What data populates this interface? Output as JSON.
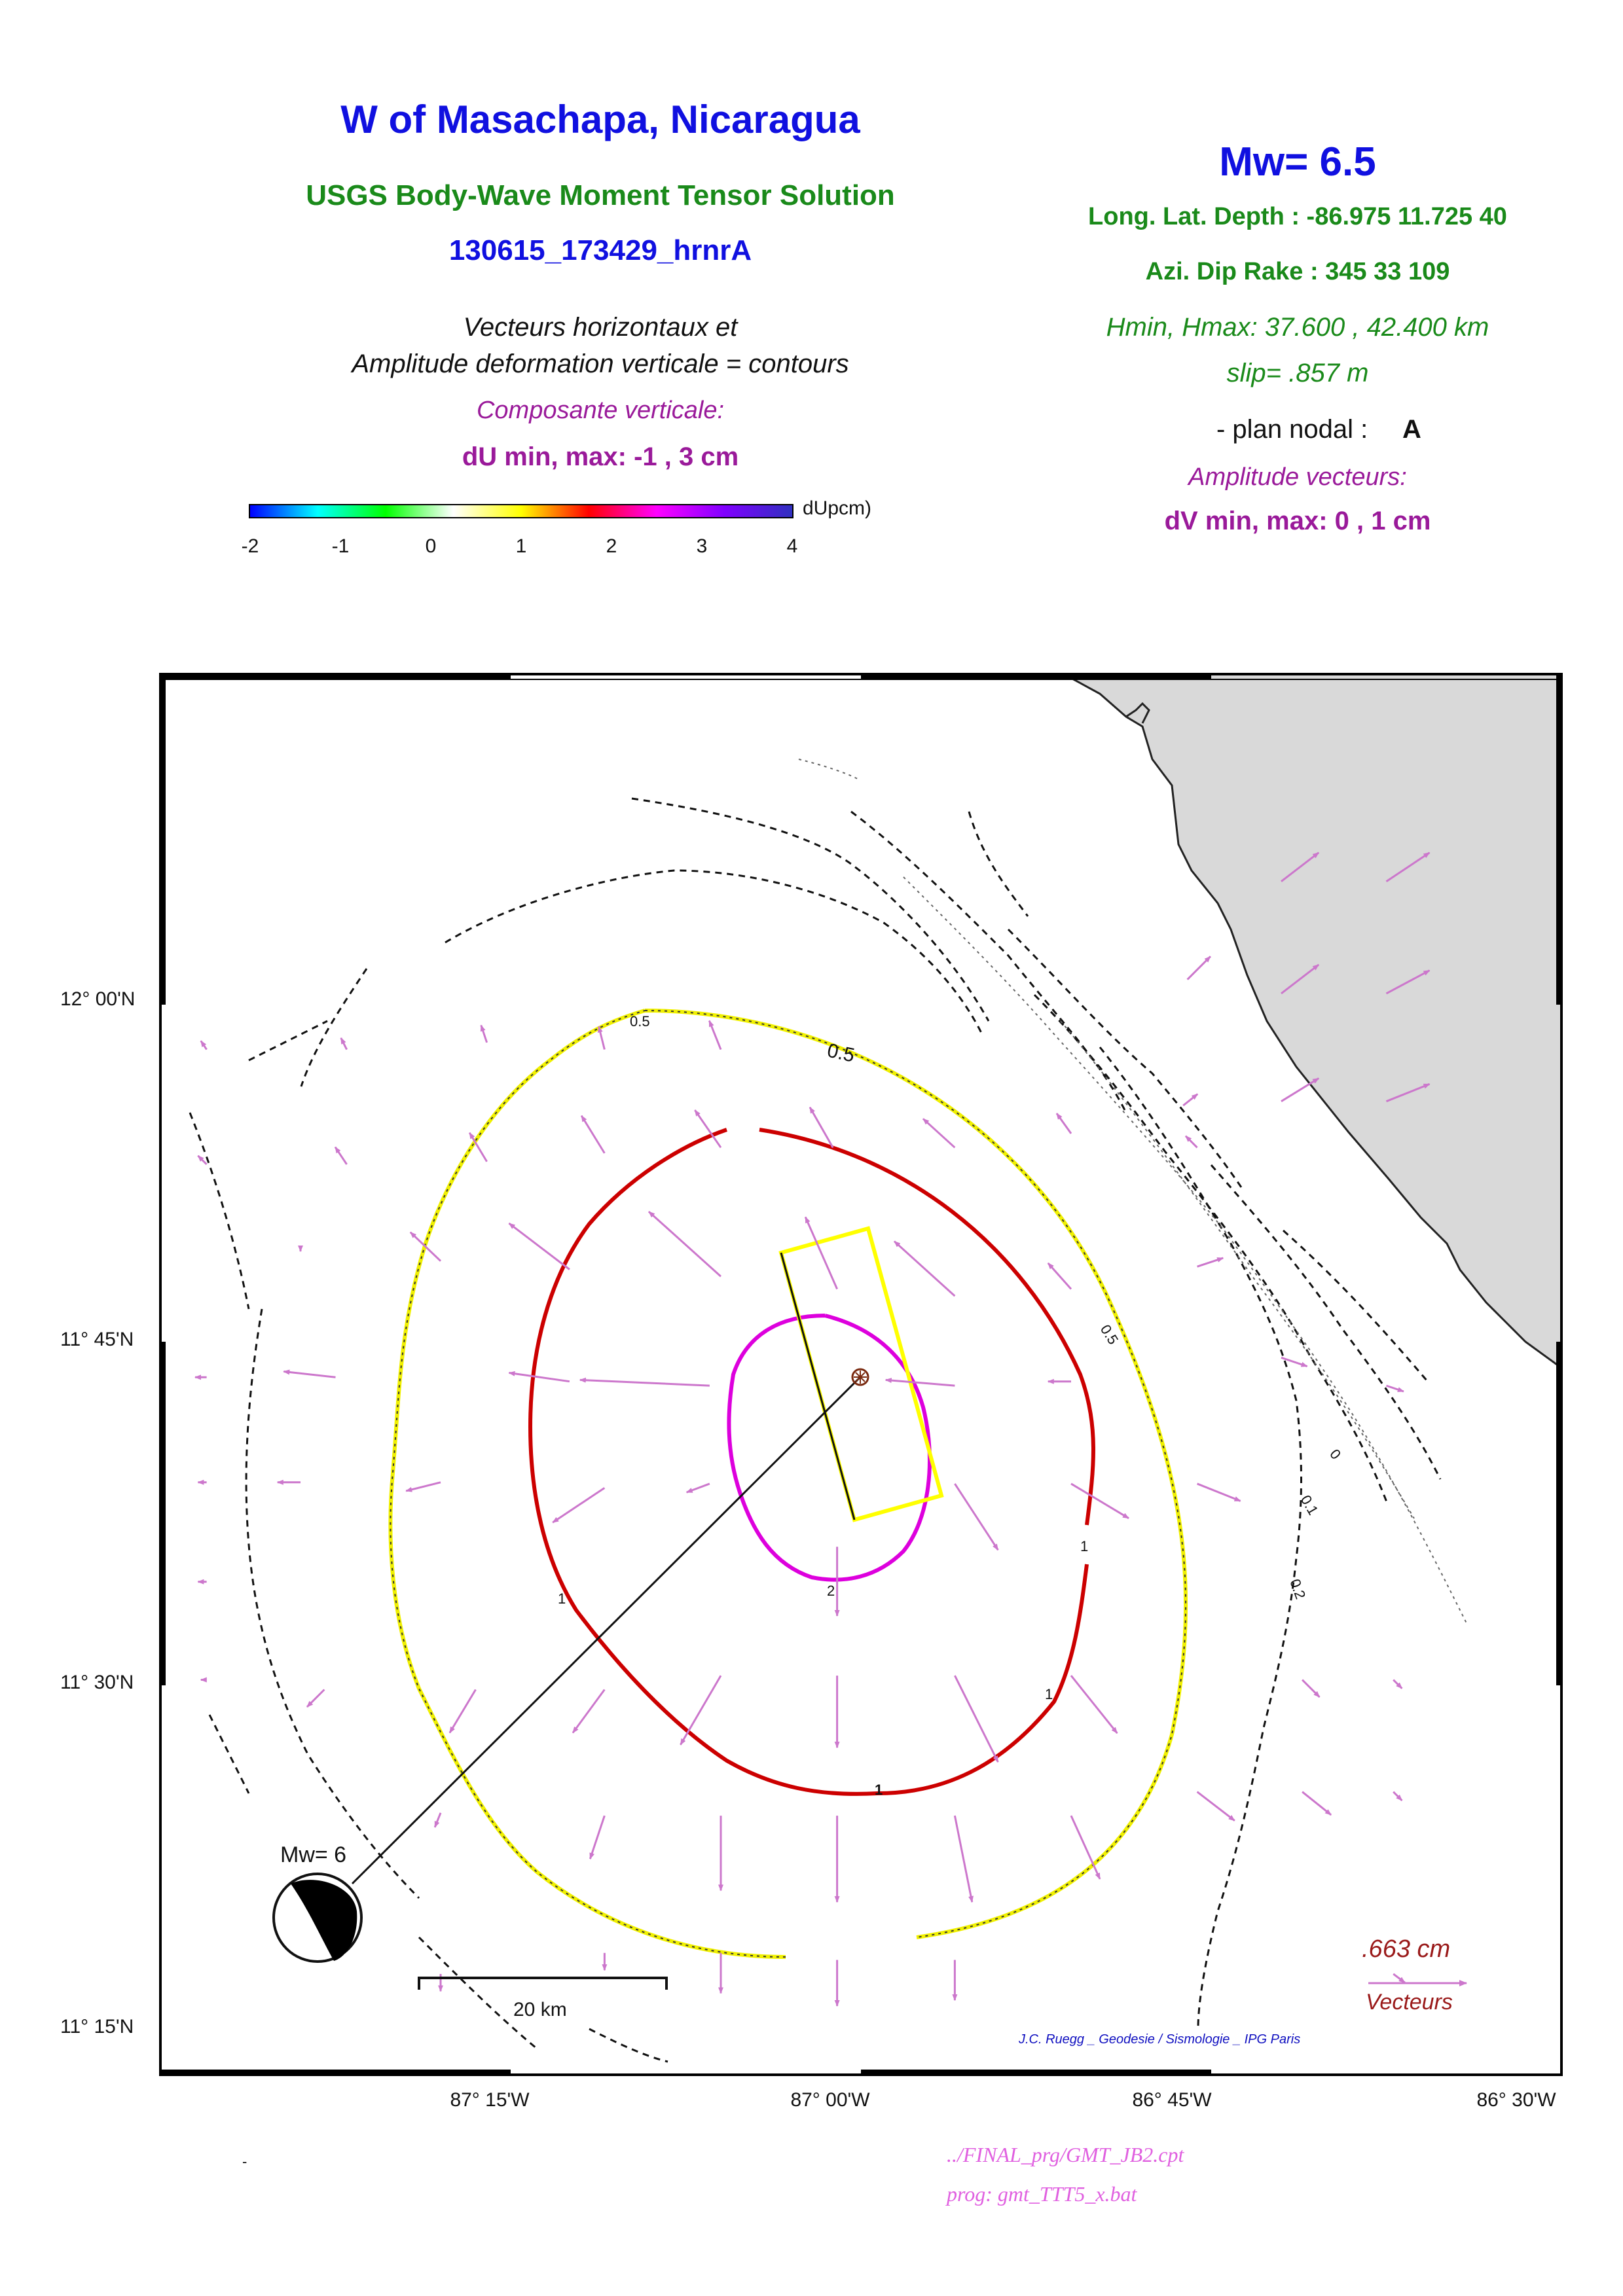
{
  "header": {
    "title": "W of Masachapa, Nicaragua",
    "subtitle": "USGS Body-Wave Moment Tensor Solution",
    "event_id": "130615_173429_hrnrA",
    "desc_line1": "Vecteurs horizontaux et",
    "desc_line2": "Amplitude deformation verticale = contours",
    "vertical_component": "Composante verticale:",
    "du_range": "dU min, max:  -1 , 3 cm"
  },
  "right_panel": {
    "magnitude": "Mw= 6.5",
    "location": "Long. Lat. Depth : -86.975 11.725 40",
    "mechanism": "Azi.  Dip   Rake :  345 33 109",
    "hminmax": "Hmin, Hmax:  37.600 , 42.400 km",
    "slip": "slip= .857 m",
    "plan_nodal_label": "- plan nodal :",
    "plan_nodal_value": "A",
    "vector_amplitude": "Amplitude vecteurs:",
    "dv_range": "dV min, max:  0 , 1 cm"
  },
  "colorbar": {
    "label": "dUpcm)",
    "ticks": [
      "-2",
      "-1",
      "0",
      "1",
      "2",
      "3",
      "4"
    ],
    "colors": [
      "#0000ff",
      "#00ffff",
      "#00ff00",
      "#ffffff",
      "#ffff00",
      "#ff0000",
      "#ff00ff",
      "#8000ff",
      "#3030c0"
    ]
  },
  "map": {
    "lat_labels": [
      "12° 00'N",
      "11° 45'N",
      "11° 30'N",
      "11° 15'N"
    ],
    "lon_labels": [
      "87° 15'W",
      "87° 00'W",
      "86° 45'W",
      "86° 30'W"
    ],
    "contour_labels": [
      "0.5",
      "0.5",
      "0.5",
      "1",
      "1",
      "1",
      "1",
      "2",
      "0",
      "0.1",
      "0.2"
    ],
    "beachball_label": "Mw= 6",
    "scale_label": "20 km",
    "vector_scale_value": ".663  cm",
    "vector_scale_label": "Vecteurs",
    "credit": "J.C. Ruegg _ Geodesie / Sismologie _ IPG Paris",
    "colors": {
      "land": "#d9d9d9",
      "contour_05": "#f0f000",
      "contour_1": "#cc0000",
      "contour_2": "#dd00dd",
      "vector": "#cc77cc",
      "fault": "#ffff00"
    },
    "vectors": [
      {
        "lon": -87.367,
        "lat": 11.94,
        "de": -0.04,
        "dn": 0.08
      },
      {
        "lon": -87.267,
        "lat": 11.945,
        "de": -0.04,
        "dn": 0.12
      },
      {
        "lon": -87.183,
        "lat": 11.94,
        "de": -0.04,
        "dn": 0.16
      },
      {
        "lon": -87.1,
        "lat": 11.94,
        "de": -0.08,
        "dn": 0.2
      },
      {
        "lon": -87.367,
        "lat": 11.858,
        "de": -0.08,
        "dn": 0.12
      },
      {
        "lon": -87.267,
        "lat": 11.86,
        "de": -0.12,
        "dn": 0.2
      },
      {
        "lon": -87.183,
        "lat": 11.866,
        "de": -0.16,
        "dn": 0.26
      },
      {
        "lon": -87.1,
        "lat": 11.87,
        "de": -0.18,
        "dn": 0.26
      },
      {
        "lon": -87.02,
        "lat": 11.87,
        "de": -0.16,
        "dn": 0.28
      },
      {
        "lon": -86.933,
        "lat": 11.87,
        "de": -0.22,
        "dn": 0.2
      },
      {
        "lon": -86.85,
        "lat": 11.88,
        "de": -0.1,
        "dn": 0.14
      },
      {
        "lon": -86.76,
        "lat": 11.87,
        "de": -0.08,
        "dn": 0.08
      },
      {
        "lon": -87.3,
        "lat": 11.789,
        "de": -0.21,
        "dn": 0.2
      },
      {
        "lon": -87.208,
        "lat": 11.783,
        "de": -0.42,
        "dn": 0.32
      },
      {
        "lon": -87.1,
        "lat": 11.778,
        "de": -0.5,
        "dn": 0.45
      },
      {
        "lon": -87.017,
        "lat": 11.769,
        "de": -0.22,
        "dn": 0.5
      },
      {
        "lon": -86.933,
        "lat": 11.764,
        "de": -0.42,
        "dn": 0.38
      },
      {
        "lon": -86.85,
        "lat": 11.769,
        "de": -0.16,
        "dn": 0.18
      },
      {
        "lon": -87.375,
        "lat": 11.706,
        "de": -0.36,
        "dn": 0.04
      },
      {
        "lon": -87.208,
        "lat": 11.703,
        "de": -0.42,
        "dn": 0.06
      },
      {
        "lon": -87.108,
        "lat": 11.7,
        "de": -0.9,
        "dn": 0.04
      },
      {
        "lon": -86.933,
        "lat": 11.7,
        "de": -0.48,
        "dn": 0.04
      },
      {
        "lon": -86.85,
        "lat": 11.703,
        "de": -0.16,
        "dn": 0.0
      },
      {
        "lon": -87.3,
        "lat": 11.631,
        "de": -0.24,
        "dn": -0.06
      },
      {
        "lon": -87.183,
        "lat": 11.627,
        "de": -0.36,
        "dn": -0.24
      },
      {
        "lon": -87.108,
        "lat": 11.63,
        "de": -0.16,
        "dn": -0.06
      },
      {
        "lon": -87.017,
        "lat": 11.585,
        "de": 0.0,
        "dn": -0.48
      },
      {
        "lon": -86.933,
        "lat": 11.63,
        "de": 0.3,
        "dn": -0.46
      },
      {
        "lon": -86.85,
        "lat": 11.63,
        "de": 0.4,
        "dn": -0.24
      },
      {
        "lon": -87.275,
        "lat": 11.483,
        "de": -0.18,
        "dn": -0.3
      },
      {
        "lon": -87.183,
        "lat": 11.483,
        "de": -0.22,
        "dn": -0.3
      },
      {
        "lon": -87.1,
        "lat": 11.493,
        "de": -0.28,
        "dn": -0.48
      },
      {
        "lon": -87.017,
        "lat": 11.493,
        "de": 0.0,
        "dn": -0.5
      },
      {
        "lon": -86.933,
        "lat": 11.493,
        "de": 0.3,
        "dn": -0.6
      },
      {
        "lon": -86.85,
        "lat": 11.493,
        "de": 0.32,
        "dn": -0.4
      },
      {
        "lon": -87.183,
        "lat": 11.393,
        "de": -0.1,
        "dn": -0.3
      },
      {
        "lon": -87.1,
        "lat": 11.393,
        "de": 0.0,
        "dn": -0.52
      },
      {
        "lon": -87.017,
        "lat": 11.393,
        "de": 0.0,
        "dn": -0.6
      },
      {
        "lon": -86.933,
        "lat": 11.393,
        "de": 0.12,
        "dn": -0.6
      },
      {
        "lon": -86.85,
        "lat": 11.393,
        "de": 0.2,
        "dn": -0.44
      },
      {
        "lon": -87.1,
        "lat": 11.295,
        "de": 0.0,
        "dn": -0.28
      },
      {
        "lon": -87.017,
        "lat": 11.29,
        "de": 0.0,
        "dn": -0.32
      },
      {
        "lon": -86.933,
        "lat": 11.29,
        "de": 0.0,
        "dn": -0.28
      },
      {
        "lon": -86.767,
        "lat": 11.99,
        "de": 0.16,
        "dn": 0.16
      },
      {
        "lon": -86.7,
        "lat": 12.06,
        "de": 0.26,
        "dn": 0.2
      },
      {
        "lon": -86.625,
        "lat": 12.06,
        "de": 0.3,
        "dn": 0.2
      },
      {
        "lon": -86.7,
        "lat": 11.98,
        "de": 0.26,
        "dn": 0.2
      },
      {
        "lon": -86.625,
        "lat": 11.98,
        "de": 0.3,
        "dn": 0.16
      },
      {
        "lon": -86.7,
        "lat": 11.903,
        "de": 0.26,
        "dn": 0.16
      },
      {
        "lon": -86.625,
        "lat": 11.903,
        "de": 0.3,
        "dn": 0.12
      },
      {
        "lon": -86.77,
        "lat": 11.9,
        "de": 0.1,
        "dn": 0.08
      },
      {
        "lon": -86.76,
        "lat": 11.785,
        "de": 0.18,
        "dn": 0.06
      },
      {
        "lon": -86.7,
        "lat": 11.72,
        "de": 0.18,
        "dn": -0.06
      },
      {
        "lon": -86.625,
        "lat": 11.7,
        "de": 0.12,
        "dn": -0.04
      },
      {
        "lon": -86.76,
        "lat": 11.63,
        "de": 0.3,
        "dn": -0.12
      },
      {
        "lon": -86.685,
        "lat": 11.49,
        "de": 0.12,
        "dn": -0.12
      },
      {
        "lon": -86.62,
        "lat": 11.49,
        "de": 0.06,
        "dn": -0.06
      },
      {
        "lon": -86.76,
        "lat": 11.41,
        "de": 0.26,
        "dn": -0.2
      },
      {
        "lon": -86.685,
        "lat": 11.41,
        "de": 0.2,
        "dn": -0.16
      },
      {
        "lon": -86.62,
        "lat": 11.41,
        "de": 0.06,
        "dn": -0.06
      },
      {
        "lon": -86.62,
        "lat": 11.28,
        "de": 0.08,
        "dn": -0.06
      },
      {
        "lon": -87.467,
        "lat": 11.94,
        "de": -0.04,
        "dn": 0.06
      },
      {
        "lon": -87.467,
        "lat": 11.858,
        "de": -0.06,
        "dn": 0.06
      },
      {
        "lon": -87.4,
        "lat": 11.8,
        "de": 0.0,
        "dn": -0.04
      },
      {
        "lon": -87.467,
        "lat": 11.706,
        "de": -0.08,
        "dn": 0.0
      },
      {
        "lon": -87.4,
        "lat": 11.631,
        "de": -0.16,
        "dn": 0.0
      },
      {
        "lon": -87.467,
        "lat": 11.631,
        "de": -0.06,
        "dn": 0.0
      },
      {
        "lon": -87.467,
        "lat": 11.56,
        "de": -0.06,
        "dn": 0.0
      },
      {
        "lon": -87.383,
        "lat": 11.483,
        "de": -0.12,
        "dn": -0.12
      },
      {
        "lon": -87.467,
        "lat": 11.49,
        "de": -0.04,
        "dn": 0.0
      },
      {
        "lon": -87.3,
        "lat": 11.395,
        "de": -0.04,
        "dn": -0.1
      },
      {
        "lon": -87.3,
        "lat": 11.28,
        "de": 0.0,
        "dn": -0.12
      },
      {
        "lon": -87.183,
        "lat": 11.295,
        "de": 0.0,
        "dn": -0.12
      }
    ]
  }
}
